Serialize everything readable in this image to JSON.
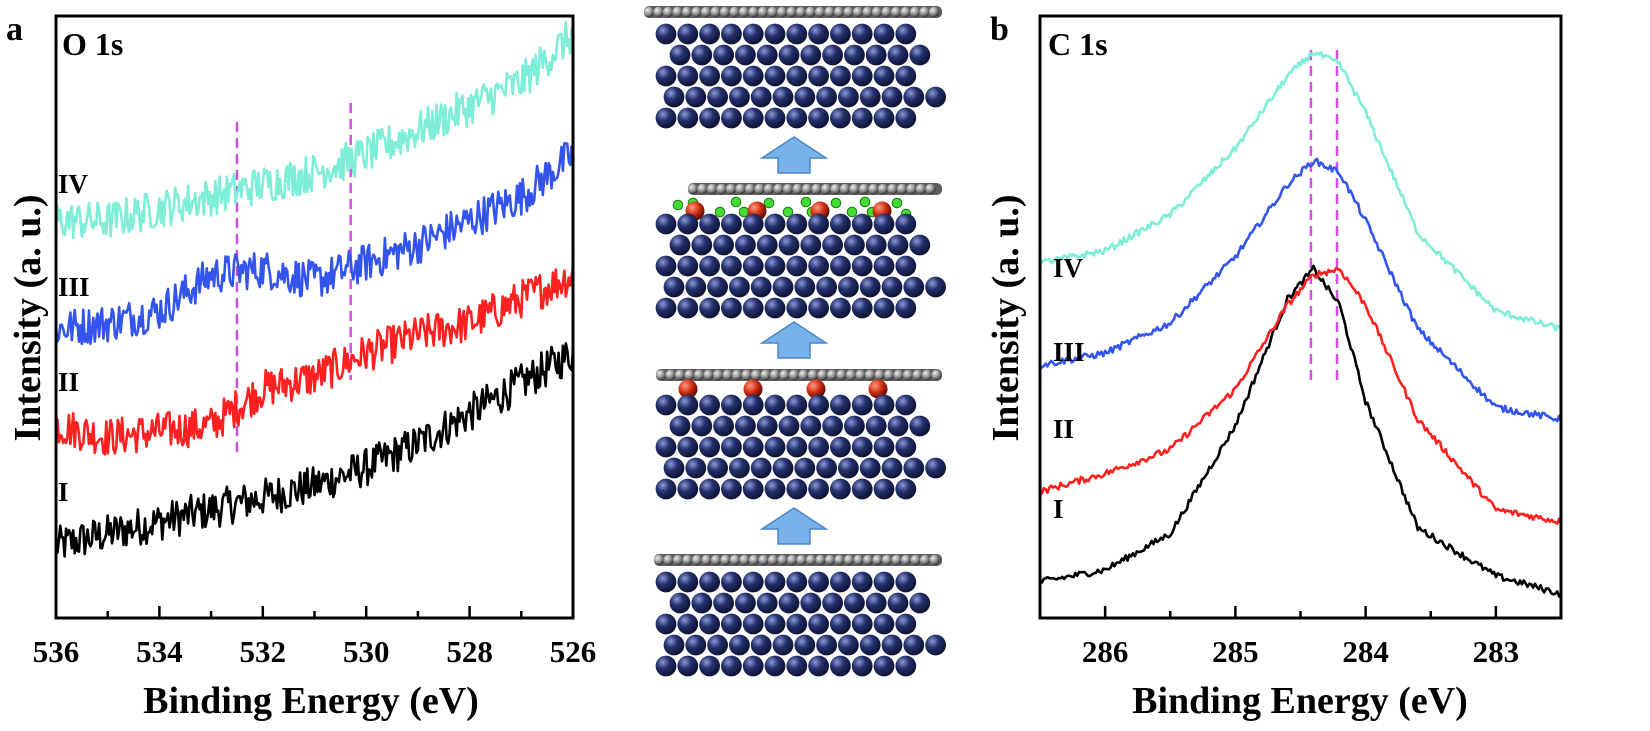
{
  "chart_data": [
    {
      "type": "line",
      "panel_letter": "a",
      "title": "O 1s",
      "xlabel": "Binding Energy (eV)",
      "ylabel": "Intensity (a. u.)",
      "xlim": [
        536,
        526
      ],
      "x_reversed": true,
      "ylim": [
        0,
        100
      ],
      "x_ticks": [
        "536",
        "534",
        "532",
        "530",
        "528",
        "526"
      ],
      "y_ticks_shown": false,
      "reference_lines_eV": [
        532.5,
        530.3
      ],
      "series": [
        {
          "name": "I",
          "color": "#000000",
          "x": [
            536,
            535,
            534,
            533,
            532,
            531,
            530,
            529,
            528,
            527,
            526
          ],
          "values": [
            12,
            14,
            16,
            18,
            20,
            22,
            25,
            29,
            34,
            39,
            44
          ]
        },
        {
          "name": "II",
          "color": "#ff2020",
          "x": [
            536,
            535,
            534,
            533,
            532,
            531,
            530,
            529,
            528,
            527,
            526
          ],
          "values": [
            32,
            30,
            31,
            32,
            38,
            40,
            44,
            47,
            49,
            53,
            57
          ]
        },
        {
          "name": "III",
          "color": "#3355ee",
          "x": [
            536,
            535,
            534,
            533,
            532,
            531,
            530,
            529,
            528,
            527,
            526
          ],
          "values": [
            48,
            49,
            51,
            57,
            58,
            56,
            59,
            62,
            66,
            70,
            77
          ]
        },
        {
          "name": "IV",
          "color": "#7eeed8",
          "x": [
            536,
            535,
            534,
            533,
            532,
            531,
            530,
            529,
            528,
            527,
            526
          ],
          "values": [
            66,
            66,
            68,
            70,
            72,
            74,
            77,
            81,
            85,
            89,
            97
          ]
        }
      ]
    },
    {
      "type": "line",
      "panel_letter": "b",
      "title": "C 1s",
      "xlabel": "Binding Energy (eV)",
      "ylabel": "Intensity (a. u.)",
      "xlim": [
        286.5,
        282.5
      ],
      "x_reversed": true,
      "ylim": [
        0,
        100
      ],
      "x_ticks": [
        "286",
        "285",
        "284",
        "283"
      ],
      "y_ticks_shown": false,
      "reference_lines_eV": [
        284.42,
        284.22
      ],
      "series": [
        {
          "name": "I",
          "color": "#000000",
          "x": [
            286.5,
            286.0,
            285.5,
            285.0,
            284.6,
            284.4,
            284.2,
            284.0,
            283.6,
            283.0,
            282.5
          ],
          "values": [
            6,
            8,
            14,
            32,
            53,
            58,
            52,
            36,
            15,
            7,
            4
          ]
        },
        {
          "name": "II",
          "color": "#ff2020",
          "x": [
            286.5,
            286.0,
            285.5,
            285.0,
            284.6,
            284.4,
            284.2,
            284.0,
            283.6,
            283.0,
            282.5
          ],
          "values": [
            21,
            24,
            28,
            38,
            52,
            57,
            58,
            52,
            33,
            18,
            16
          ]
        },
        {
          "name": "III",
          "color": "#3355ee",
          "x": [
            286.5,
            286.0,
            285.5,
            285.0,
            284.6,
            284.4,
            284.2,
            284.0,
            283.6,
            283.0,
            282.5
          ],
          "values": [
            42,
            44,
            49,
            60,
            72,
            76,
            74,
            66,
            48,
            35,
            33
          ]
        },
        {
          "name": "IV",
          "color": "#7eeed8",
          "x": [
            286.5,
            286.0,
            285.5,
            285.0,
            284.6,
            284.4,
            284.2,
            284.0,
            283.6,
            283.0,
            282.5
          ],
          "values": [
            59,
            61,
            67,
            78,
            90,
            94,
            92,
            84,
            64,
            51,
            48
          ]
        }
      ]
    }
  ],
  "schematic": {
    "description_name": "atomic-structure-evolution",
    "stages": 4,
    "arrow_color": "#77b2e8",
    "colors": {
      "substrate_atom": "#24306b",
      "carbon_layer": "#8a8a8a",
      "oxygen_atom": "#cc2a10",
      "hydrogen_atom": "#44dd33"
    }
  }
}
